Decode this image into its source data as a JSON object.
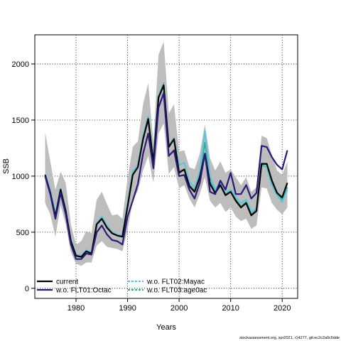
{
  "chart_data": {
    "type": "line",
    "xlabel": "Years",
    "ylabel": "SSB",
    "xlim": [
      1972,
      2023
    ],
    "ylim": [
      -90,
      2260
    ],
    "x_ticks": [
      1980,
      1990,
      2000,
      2010,
      2020
    ],
    "y_ticks": [
      0,
      500,
      1000,
      1500,
      2000
    ],
    "grid": true,
    "legend_position": "bottom-left",
    "footnote": "stockassessment.org, spr2021, r14277, git:ec2c2a0c6dde",
    "x": [
      1974,
      1975,
      1976,
      1977,
      1978,
      1979,
      1980,
      1981,
      1982,
      1983,
      1984,
      1985,
      1986,
      1987,
      1988,
      1989,
      1990,
      1991,
      1992,
      1993,
      1994,
      1995,
      1996,
      1997,
      1998,
      1999,
      2000,
      2001,
      2002,
      2003,
      2004,
      2005,
      2006,
      2007,
      2008,
      2009,
      2010,
      2011,
      2012,
      2013,
      2014,
      2015,
      2016,
      2017,
      2018,
      2019,
      2020,
      2021
    ],
    "band": {
      "lower": [
        760,
        660,
        460,
        740,
        570,
        320,
        220,
        200,
        230,
        230,
        380,
        420,
        370,
        360,
        350,
        330,
        520,
        780,
        870,
        1050,
        1180,
        940,
        1380,
        1470,
        1020,
        1080,
        890,
        920,
        800,
        720,
        840,
        990,
        780,
        720,
        760,
        680,
        720,
        640,
        600,
        620,
        530,
        560,
        900,
        890,
        760,
        700,
        660,
        720
      ],
      "upper": [
        1390,
        1130,
        880,
        1040,
        940,
        570,
        390,
        420,
        510,
        490,
        790,
        860,
        750,
        650,
        660,
        620,
        980,
        1260,
        1310,
        1640,
        1830,
        1300,
        2080,
        2200,
        1560,
        1640,
        1220,
        1230,
        1080,
        1060,
        1200,
        1460,
        1160,
        1050,
        1130,
        1030,
        1060,
        990,
        920,
        990,
        860,
        900,
        1360,
        1340,
        1190,
        1050,
        1010,
        1130
      ]
    },
    "series": [
      {
        "name": "current",
        "color": "#000000",
        "dash": "solid",
        "values": [
          1010,
          850,
          640,
          880,
          690,
          420,
          290,
          280,
          330,
          310,
          570,
          620,
          540,
          490,
          470,
          460,
          730,
          1010,
          1080,
          1330,
          1510,
          1120,
          1700,
          1810,
          1260,
          1330,
          1030,
          1060,
          910,
          860,
          990,
          1200,
          930,
          850,
          920,
          830,
          860,
          780,
          720,
          760,
          650,
          690,
          1110,
          1110,
          960,
          850,
          810,
          940
        ]
      },
      {
        "name": "w.o. FLT01:Octac",
        "color": "#2b1a7a",
        "dash": "solid",
        "values": [
          1000,
          840,
          620,
          850,
          660,
          390,
          260,
          260,
          310,
          300,
          500,
          560,
          480,
          430,
          420,
          390,
          640,
          780,
          930,
          1200,
          1380,
          1070,
          1610,
          1740,
          1180,
          1230,
          1000,
          1010,
          880,
          800,
          940,
          1200,
          860,
          840,
          960,
          880,
          1030,
          840,
          840,
          920,
          800,
          850,
          1270,
          1260,
          1170,
          1100,
          1060,
          1230
        ]
      },
      {
        "name": "w.o. FLT02:Mayac",
        "color": "#55c8dc",
        "dash": "dashed",
        "values": [
          1020,
          870,
          660,
          890,
          700,
          430,
          300,
          290,
          340,
          320,
          580,
          640,
          560,
          500,
          480,
          470,
          760,
          1040,
          1100,
          1360,
          1530,
          1150,
          1720,
          1820,
          1270,
          1340,
          1100,
          1120,
          950,
          900,
          1040,
          1400,
          1000,
          880,
          940,
          850,
          880,
          810,
          760,
          790,
          680,
          710,
          1120,
          1080,
          920,
          830,
          770,
          880
        ]
      },
      {
        "name": "w.o. FLT03:age0ac",
        "color": "#3aa88c",
        "dash": "dashed",
        "values": [
          1010,
          860,
          650,
          880,
          690,
          420,
          290,
          280,
          330,
          310,
          570,
          630,
          550,
          490,
          470,
          460,
          740,
          1020,
          1090,
          1340,
          1520,
          1130,
          1710,
          1830,
          1270,
          1330,
          1040,
          1060,
          920,
          870,
          1000,
          1300,
          950,
          860,
          930,
          840,
          870,
          790,
          730,
          770,
          660,
          700,
          1100,
          1080,
          930,
          840,
          790,
          900
        ]
      }
    ]
  }
}
